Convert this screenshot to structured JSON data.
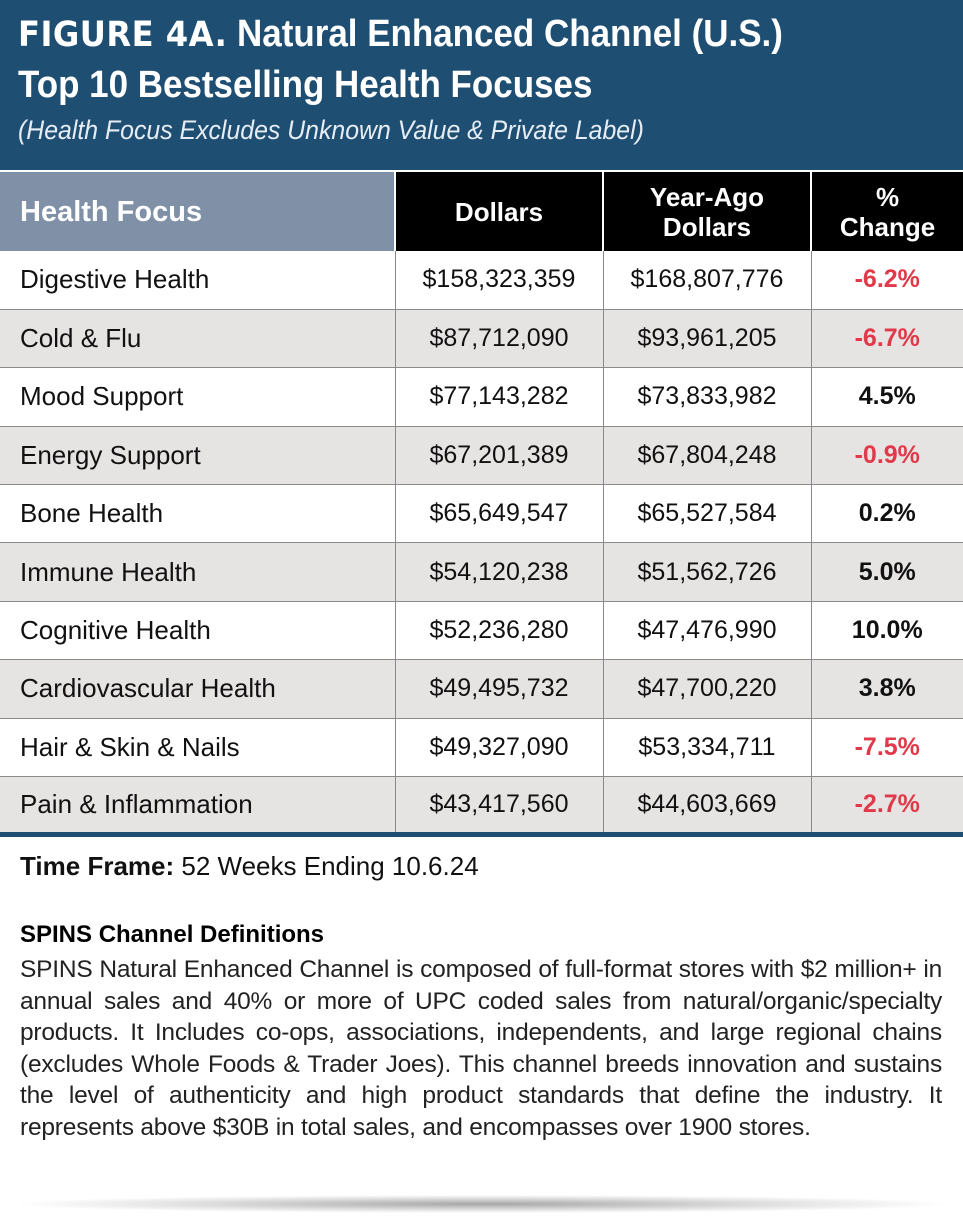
{
  "header": {
    "figure_label": "FIGURE 4A.",
    "title_line1": "Natural Enhanced Channel (U.S.)",
    "title_line2": "Top 10 Bestselling Health Focuses",
    "subtitle": "(Health Focus Excludes Unknown Value & Private Label)"
  },
  "colors": {
    "header_bg": "#1f4e73",
    "first_col_header_bg": "#7f90a7",
    "negative": "#e03a4a",
    "stripe": "#e6e3e3"
  },
  "chart_data": {
    "type": "table",
    "title": "Top 10 Bestselling Health Focuses",
    "columns": [
      "Health Focus",
      "Dollars",
      "Year-Ago Dollars",
      "% Change"
    ],
    "column_lines": [
      [
        "Health Focus"
      ],
      [
        "Dollars"
      ],
      [
        "Year-Ago",
        "Dollars"
      ],
      [
        "%",
        "Change"
      ]
    ],
    "rows": [
      {
        "focus": "Digestive Health",
        "dollars": "$158,323,359",
        "year_ago": "$168,807,776",
        "change": "-6.2%"
      },
      {
        "focus": "Cold & Flu",
        "dollars": "$87,712,090",
        "year_ago": "$93,961,205",
        "change": "-6.7%"
      },
      {
        "focus": "Mood Support",
        "dollars": "$77,143,282",
        "year_ago": "$73,833,982",
        "change": "4.5%"
      },
      {
        "focus": "Energy Support",
        "dollars": "$67,201,389",
        "year_ago": "$67,804,248",
        "change": "-0.9%"
      },
      {
        "focus": "Bone Health",
        "dollars": "$65,649,547",
        "year_ago": "$65,527,584",
        "change": "0.2%"
      },
      {
        "focus": "Immune Health",
        "dollars": "$54,120,238",
        "year_ago": "$51,562,726",
        "change": "5.0%"
      },
      {
        "focus": "Cognitive Health",
        "dollars": "$52,236,280",
        "year_ago": "$47,476,990",
        "change": "10.0%"
      },
      {
        "focus": "Cardiovascular Health",
        "dollars": "$49,495,732",
        "year_ago": "$47,700,220",
        "change": "3.8%"
      },
      {
        "focus": "Hair & Skin & Nails",
        "dollars": "$49,327,090",
        "year_ago": "$53,334,711",
        "change": "-7.5%"
      },
      {
        "focus": "Pain & Inflammation",
        "dollars": "$43,417,560",
        "year_ago": "$44,603,669",
        "change": "-2.7%"
      }
    ]
  },
  "footer": {
    "timeframe_label": "Time Frame:",
    "timeframe_value": "52 Weeks Ending 10.6.24",
    "definitions_title": "SPINS Channel Definitions",
    "definitions_body": "SPINS Natural Enhanced Channel is composed of full-format stores with $2 million+ in annual sales and 40% or more of UPC coded sales from natural/organic/specialty products. It Includes co-ops, associations, independents, and large regional chains (excludes Whole Foods & Trader Joes). This channel breeds innovation and sustains the level of authenticity and high product standards that define the industry. It represents above $30B in total sales, and encompasses over 1900 stores."
  }
}
